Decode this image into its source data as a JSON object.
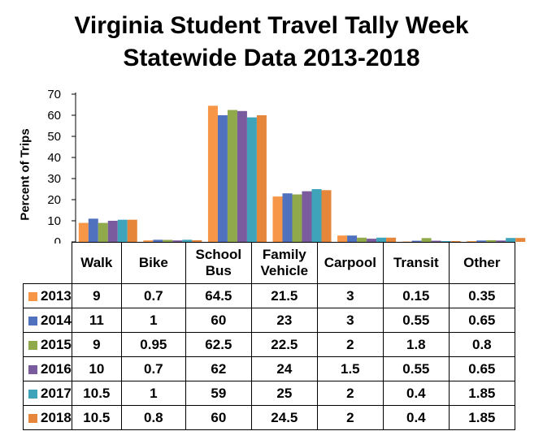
{
  "chart_data": {
    "type": "bar",
    "title": [
      "Virginia Student Travel Tally Week",
      "Statewide Data 2013-2018"
    ],
    "ylabel": "Percent of Trips",
    "ylim": [
      0,
      70
    ],
    "yticks": [
      0,
      10,
      20,
      30,
      40,
      50,
      60,
      70
    ],
    "grid": false,
    "legend": "data table below plot",
    "categories": [
      [
        "Walk"
      ],
      [
        "Bike"
      ],
      [
        "School",
        "Bus"
      ],
      [
        "Family",
        "Vehicle"
      ],
      [
        "Carpool"
      ],
      [
        "Transit"
      ],
      [
        "Other"
      ]
    ],
    "series": [
      {
        "name": "2013",
        "color": "#F79646",
        "values": [
          9,
          0.7,
          64.5,
          21.5,
          3,
          0.15,
          0.35
        ],
        "labels": [
          "9",
          "0.7",
          "64.5",
          "21.5",
          "3",
          "0.15",
          "0.35"
        ]
      },
      {
        "name": "2014",
        "color": "#4F71BE",
        "values": [
          11,
          1,
          60,
          23,
          3,
          0.55,
          0.65
        ],
        "labels": [
          "11",
          "1",
          "60",
          "23",
          "3",
          "0.55",
          "0.65"
        ]
      },
      {
        "name": "2015",
        "color": "#8FA94B",
        "values": [
          9,
          0.95,
          62.5,
          22.5,
          2,
          1.8,
          0.8
        ],
        "labels": [
          "9",
          "0.95",
          "62.5",
          "22.5",
          "2",
          "1.8",
          "0.8"
        ]
      },
      {
        "name": "2016",
        "color": "#7A5C9E",
        "values": [
          10,
          0.7,
          62,
          24,
          1.5,
          0.55,
          0.65
        ],
        "labels": [
          "10",
          "0.7",
          "62",
          "24",
          "1.5",
          "0.55",
          "0.65"
        ]
      },
      {
        "name": "2017",
        "color": "#3FA3B9",
        "values": [
          10.5,
          1,
          59,
          25,
          2,
          0.4,
          1.85
        ],
        "labels": [
          "10.5",
          "1",
          "59",
          "25",
          "2",
          "0.4",
          "1.85"
        ]
      },
      {
        "name": "2018",
        "color": "#E6863A",
        "values": [
          10.5,
          0.8,
          60,
          24.5,
          2,
          0.4,
          1.85
        ],
        "labels": [
          "10.5",
          "0.8",
          "60",
          "24.5",
          "2",
          "0.4",
          "1.85"
        ]
      }
    ]
  }
}
